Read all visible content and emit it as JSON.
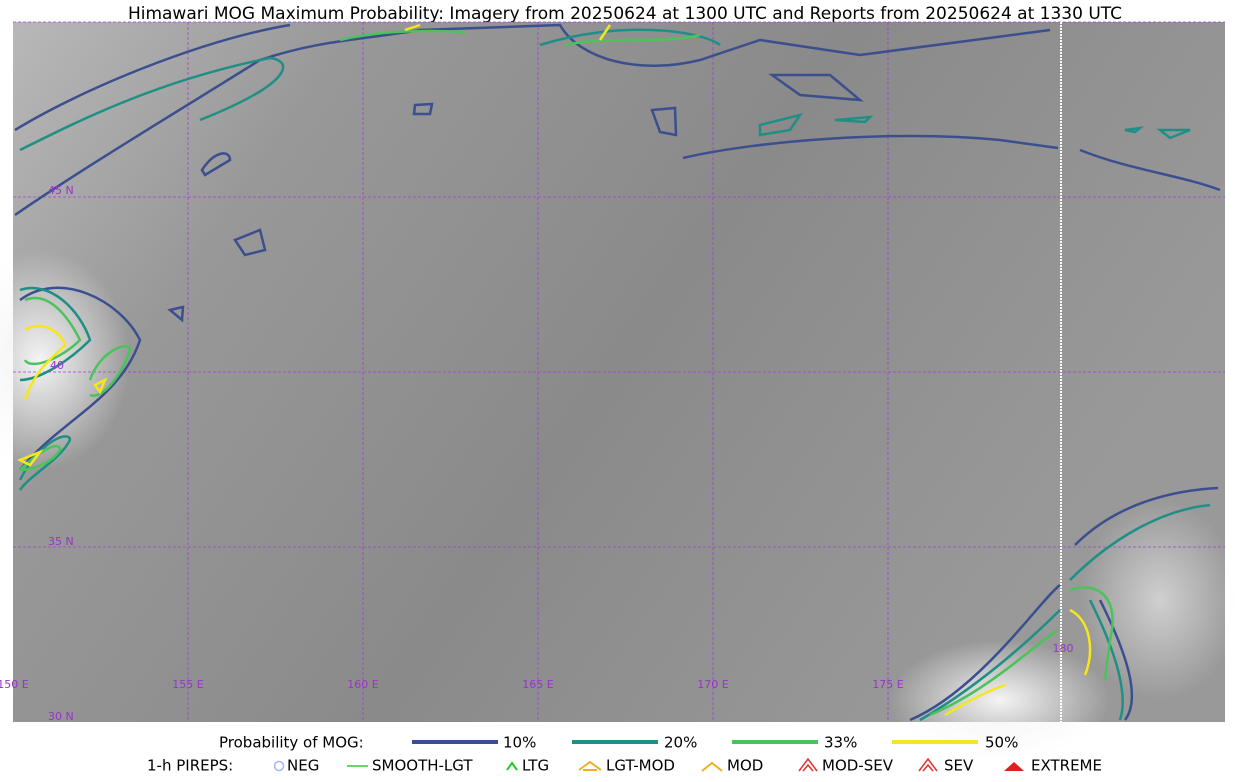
{
  "title": "Himawari MOG Maximum Probability: Imagery from 20250624 at 1300 UTC and Reports from 20250624 at 1330 UTC",
  "grid_labels": {
    "lat": [
      "45 N",
      "40",
      "35 N",
      "30 N"
    ],
    "lon": [
      "150 E",
      "155 E",
      "160 E",
      "165 E",
      "170 E",
      "175 E",
      "180"
    ]
  },
  "legend": {
    "probability": {
      "label": "Probability of MOG:",
      "items": [
        "10%",
        "20%",
        "33%",
        "50%"
      ]
    },
    "pireps": {
      "label": "1-h PIREPS:",
      "items": [
        "NEG",
        "SMOOTH-LGT",
        "LTG",
        "LGT-MOD",
        "MOD",
        "MOD-SEV",
        "SEV",
        "EXTREME"
      ]
    }
  }
}
